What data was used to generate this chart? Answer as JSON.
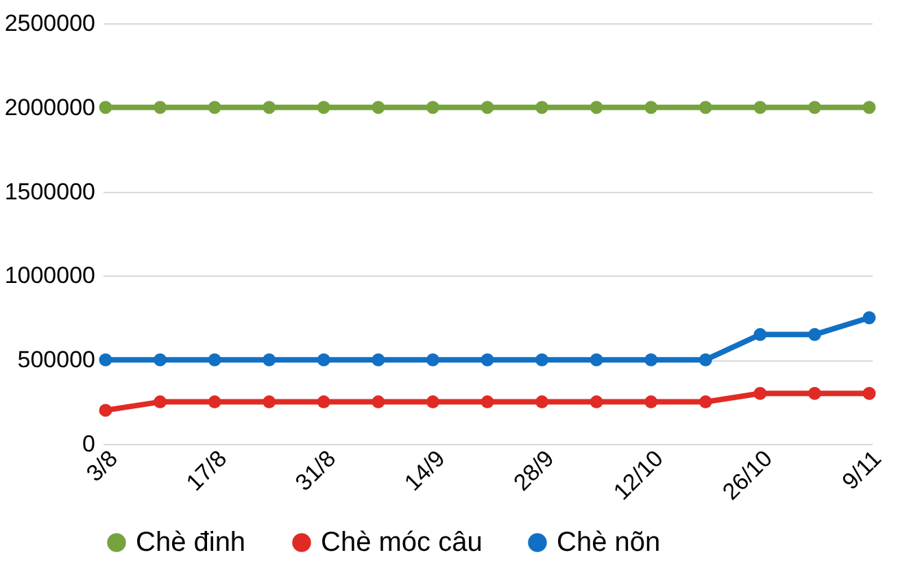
{
  "chart_data": {
    "type": "line",
    "categories": [
      "3/8",
      null,
      "17/8",
      null,
      "31/8",
      null,
      "14/9",
      null,
      "28/9",
      null,
      "12/10",
      null,
      "26/10",
      null,
      "9/11"
    ],
    "series": [
      {
        "name": "Chè đinh",
        "color": "#77a33f",
        "values": [
          2000000,
          2000000,
          2000000,
          2000000,
          2000000,
          2000000,
          2000000,
          2000000,
          2000000,
          2000000,
          2000000,
          2000000,
          2000000,
          2000000,
          2000000
        ]
      },
      {
        "name": "Chè móc câu",
        "color": "#e02b25",
        "values": [
          200000,
          250000,
          250000,
          250000,
          250000,
          250000,
          250000,
          250000,
          250000,
          250000,
          250000,
          250000,
          300000,
          300000,
          300000
        ]
      },
      {
        "name": "Chè nõn",
        "color": "#1170c4",
        "values": [
          500000,
          500000,
          500000,
          500000,
          500000,
          500000,
          500000,
          500000,
          500000,
          500000,
          500000,
          500000,
          650000,
          650000,
          750000
        ]
      }
    ],
    "ylim": [
      0,
      2500000
    ],
    "yticks": [
      0,
      500000,
      1000000,
      1500000,
      2000000,
      2500000
    ],
    "grid": "y",
    "legend": "bottom",
    "marker": "circle",
    "line_style": "solid"
  }
}
